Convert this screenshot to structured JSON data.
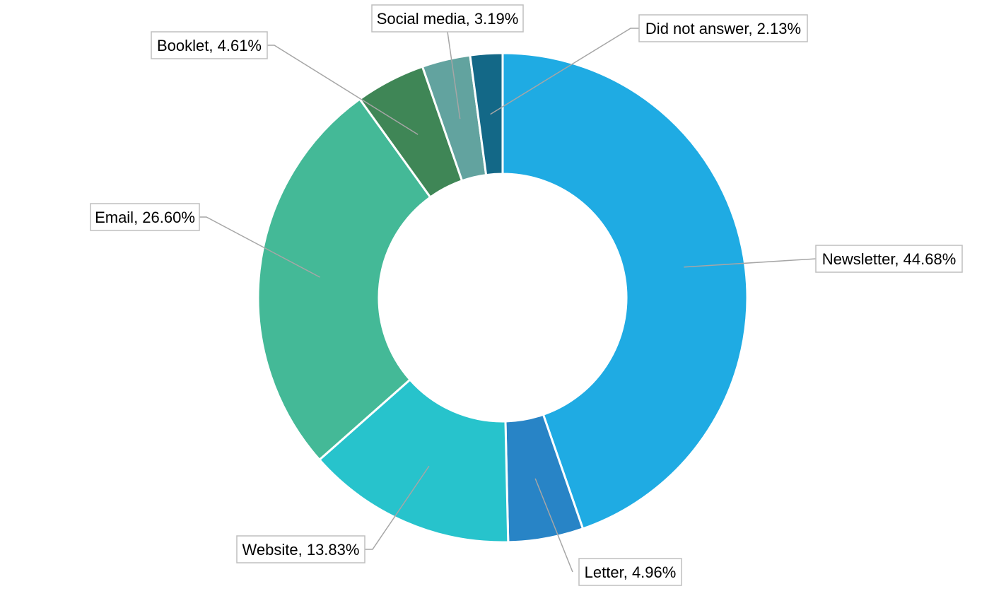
{
  "chart_data": {
    "type": "pie",
    "variant": "donut",
    "title": "",
    "legend": "none",
    "data_labels": "category-and-percent",
    "slices": [
      {
        "name": "Newsletter",
        "value": 44.68,
        "label": "Newsletter, 44.68%",
        "color": "#1fabe3"
      },
      {
        "name": "Letter",
        "value": 4.96,
        "label": "Letter, 4.96%",
        "color": "#2884c6"
      },
      {
        "name": "Website",
        "value": 13.83,
        "label": "Website, 13.83%",
        "color": "#27c3cc"
      },
      {
        "name": "Email",
        "value": 26.6,
        "label": "Email, 26.60%",
        "color": "#44b997"
      },
      {
        "name": "Booklet",
        "value": 4.61,
        "label": "Booklet, 4.61%",
        "color": "#3f8656"
      },
      {
        "name": "Social media",
        "value": 3.19,
        "label": "Social media, 3.19%",
        "color": "#62a39f"
      },
      {
        "name": "Did not answer",
        "value": 2.13,
        "label": "Did not answer, 2.13%",
        "color": "#136887"
      }
    ]
  }
}
